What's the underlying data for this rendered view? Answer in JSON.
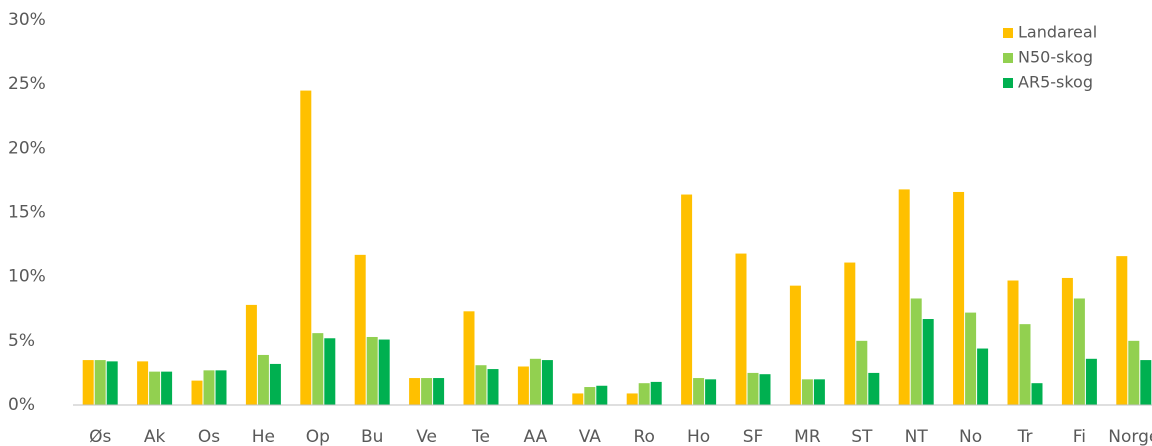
{
  "chart_data": {
    "type": "bar",
    "categories": [
      "Øs",
      "Ak",
      "Os",
      "He",
      "Op",
      "Bu",
      "Ve",
      "Te",
      "AA",
      "VA",
      "Ro",
      "Ho",
      "SF",
      "MR",
      "ST",
      "NT",
      "No",
      "Tr",
      "Fi",
      "Norge"
    ],
    "series": [
      {
        "name": "Landareal",
        "color": "#FFC000",
        "values": [
          3.5,
          3.4,
          1.9,
          7.8,
          24.5,
          11.7,
          2.1,
          7.3,
          3.0,
          0.9,
          0.9,
          16.4,
          11.8,
          9.3,
          11.1,
          16.8,
          16.6,
          9.7,
          9.9,
          11.6
        ]
      },
      {
        "name": "N50-skog",
        "color": "#92D050",
        "values": [
          3.5,
          2.6,
          2.7,
          3.9,
          5.6,
          5.3,
          2.1,
          3.1,
          3.6,
          1.4,
          1.7,
          2.1,
          2.5,
          2.0,
          5.0,
          8.3,
          7.2,
          6.3,
          8.3,
          5.0
        ]
      },
      {
        "name": "AR5-skog",
        "color": "#00B050",
        "values": [
          3.4,
          2.6,
          2.7,
          3.2,
          5.2,
          5.1,
          2.1,
          2.8,
          3.5,
          1.5,
          1.8,
          2.0,
          2.4,
          2.0,
          2.5,
          6.7,
          4.4,
          1.7,
          3.6,
          3.5
        ]
      }
    ],
    "ylim": [
      0,
      30
    ],
    "yticks": [
      {
        "value": 0,
        "label": "0%"
      },
      {
        "value": 5,
        "label": "5%"
      },
      {
        "value": 10,
        "label": "10%"
      },
      {
        "value": 15,
        "label": "15%"
      },
      {
        "value": 20,
        "label": "20%"
      },
      {
        "value": 25,
        "label": "25%"
      },
      {
        "value": 30,
        "label": "30%"
      }
    ],
    "grid": false,
    "legend": "top-right"
  }
}
